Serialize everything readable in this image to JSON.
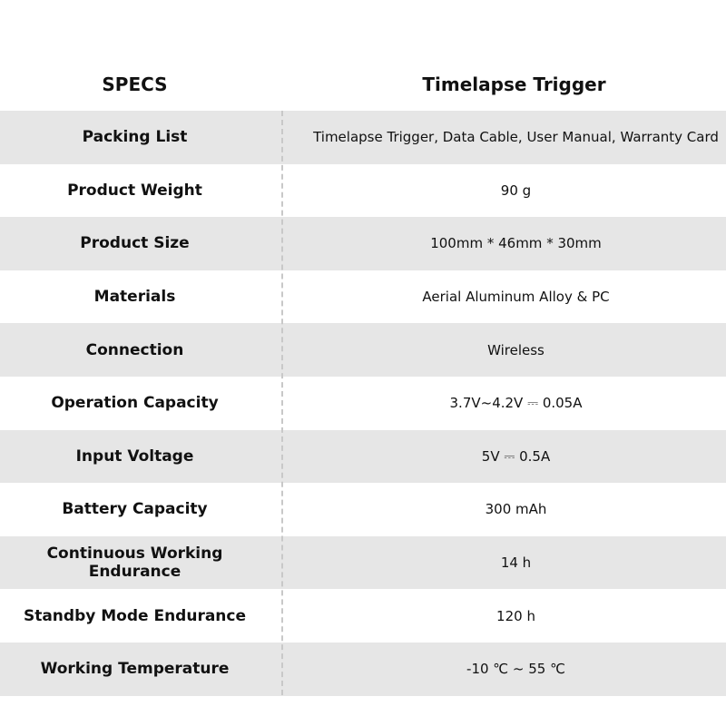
{
  "header": {
    "specs": "SPECS",
    "product": "Timelapse Trigger"
  },
  "rows": [
    {
      "label": "Packing List",
      "value": "Timelapse Trigger, Data Cable, User Manual, Warranty Card"
    },
    {
      "label": "Product Weight",
      "value": "90 g"
    },
    {
      "label": "Product Size",
      "value": "100mm * 46mm * 30mm"
    },
    {
      "label": "Materials",
      "value": "Aerial Aluminum Alloy & PC"
    },
    {
      "label": "Connection",
      "value": "Wireless"
    },
    {
      "label": "Operation Capacity",
      "value": "3.7V~4.2V ⎓ 0.05A"
    },
    {
      "label": "Input Voltage",
      "value": "5V ⎓ 0.5A"
    },
    {
      "label": "Battery Capacity",
      "value": "300 mAh"
    },
    {
      "label": "Continuous Working Endurance",
      "value": "14 h"
    },
    {
      "label": "Standby Mode Endurance",
      "value": "120 h"
    },
    {
      "label": "Working Temperature",
      "value": "-10 ℃ ~ 55 ℃"
    }
  ],
  "colors": {
    "stripe": "#e6e6e6",
    "divider": "#c8c8c8"
  }
}
